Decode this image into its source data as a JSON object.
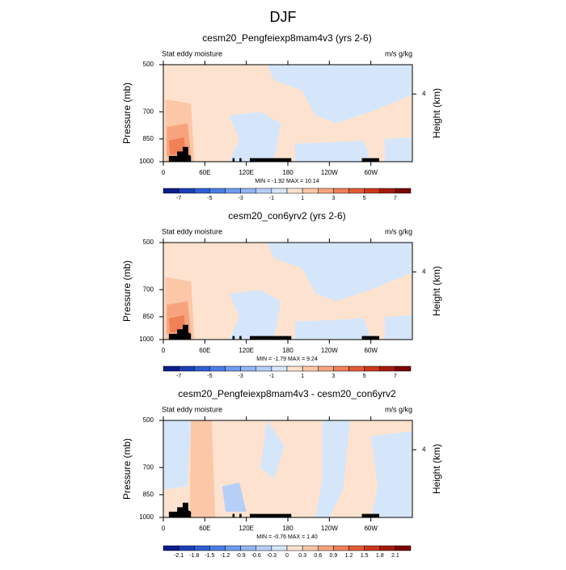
{
  "title": "DJF",
  "chart_data": [
    {
      "type": "contour",
      "title": "cesm20_Pengfeiexp8mam4v3 (yrs 2-6)",
      "left_label": "Stat eddy moisture",
      "right_label": "m/s g/kg",
      "ylabel": "Pressure (mb)",
      "y2label": "Height (km)",
      "ylim": [
        1000,
        500
      ],
      "yticks": [
        500,
        700,
        850,
        1000
      ],
      "log_y": true,
      "y2ticks": [
        4
      ],
      "xlim": [
        0,
        360
      ],
      "xticks": [
        0,
        {
          "value": 60,
          "label": "60E"
        },
        {
          "value": 120,
          "label": "120E"
        },
        180,
        {
          "value": 240,
          "label": "120W"
        },
        {
          "value": 300,
          "label": "60W"
        }
      ],
      "stats": "MIN = -1.92  MAX = 10.14",
      "colorbar": {
        "lim": [
          -8,
          8
        ],
        "ticks": [
          -7,
          -5,
          -3,
          -1,
          1,
          3,
          5,
          7
        ],
        "colors": [
          "#0a1e8c",
          "#1c3fb7",
          "#2f5fd4",
          "#4a7ee8",
          "#6f9bf0",
          "#93b5f4",
          "#b6cff7",
          "#d6e6fa",
          "#fde3cf",
          "#fbc7a7",
          "#f7a47e",
          "#f08058",
          "#e45a36",
          "#cc381d",
          "#a51b0f",
          "#7a0505"
        ]
      }
    },
    {
      "type": "contour",
      "title": "cesm20_con6yrv2 (yrs 2-6)",
      "left_label": "Stat eddy moisture",
      "right_label": "m/s g/kg",
      "ylabel": "Pressure (mb)",
      "y2label": "Height (km)",
      "ylim": [
        1000,
        500
      ],
      "yticks": [
        500,
        700,
        850,
        1000
      ],
      "log_y": true,
      "y2ticks": [
        4
      ],
      "xlim": [
        0,
        360
      ],
      "xticks": [
        0,
        {
          "value": 60,
          "label": "60E"
        },
        {
          "value": 120,
          "label": "120E"
        },
        180,
        {
          "value": 240,
          "label": "120W"
        },
        {
          "value": 300,
          "label": "60W"
        }
      ],
      "stats": "MIN = -1.79  MAX =  9.24",
      "colorbar": {
        "lim": [
          -8,
          8
        ],
        "ticks": [
          -7,
          -5,
          -3,
          -1,
          1,
          3,
          5,
          7
        ],
        "colors": [
          "#0a1e8c",
          "#1c3fb7",
          "#2f5fd4",
          "#4a7ee8",
          "#6f9bf0",
          "#93b5f4",
          "#b6cff7",
          "#d6e6fa",
          "#fde3cf",
          "#fbc7a7",
          "#f7a47e",
          "#f08058",
          "#e45a36",
          "#cc381d",
          "#a51b0f",
          "#7a0505"
        ]
      }
    },
    {
      "type": "contour",
      "title": "cesm20_Pengfeiexp8mam4v3 - cesm20_con6yrv2",
      "left_label": "Stat eddy moisture",
      "right_label": "m/s g/kg",
      "ylabel": "Pressure (mb)",
      "y2label": "Height (km)",
      "ylim": [
        1000,
        500
      ],
      "yticks": [
        500,
        700,
        850,
        1000
      ],
      "log_y": true,
      "y2ticks": [
        4
      ],
      "xlim": [
        0,
        360
      ],
      "xticks": [
        0,
        {
          "value": 60,
          "label": "60E"
        },
        {
          "value": 120,
          "label": "120E"
        },
        180,
        {
          "value": 240,
          "label": "120W"
        },
        {
          "value": 300,
          "label": "60W"
        }
      ],
      "stats": "MIN = -0.76  MAX =  1.40",
      "colorbar": {
        "lim": [
          -2.4,
          2.4
        ],
        "ticks": [
          -2.1,
          -1.8,
          -1.5,
          -1.2,
          -0.9,
          -0.6,
          -0.3,
          0,
          0.3,
          0.6,
          0.9,
          1.2,
          1.5,
          1.8,
          2.1
        ],
        "colors": [
          "#0a1e8c",
          "#1c3fb7",
          "#2f5fd4",
          "#4a7ee8",
          "#6f9bf0",
          "#93b5f4",
          "#b6cff7",
          "#d6e6fa",
          "#fde3cf",
          "#fbc7a7",
          "#f7a47e",
          "#f08058",
          "#e45a36",
          "#cc381d",
          "#a51b0f",
          "#7a0505"
        ]
      }
    }
  ]
}
